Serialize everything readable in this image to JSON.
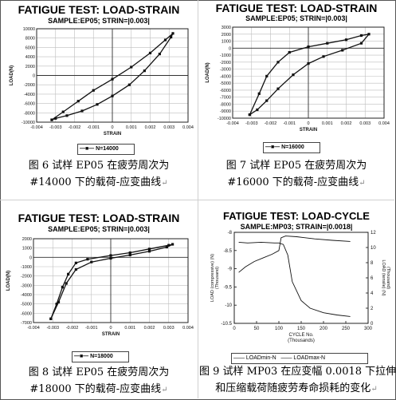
{
  "chart_data": [
    {
      "type": "line",
      "title": "FATIGUE TEST: LOAD-STRAIN",
      "subtitle": "SAMPLE:EP05; STRIN=|0.003|",
      "xlabel": "STRAIN",
      "ylabel": "LOAD(N)",
      "xlim": [
        -0.004,
        0.004
      ],
      "ylim": [
        -10000,
        10000
      ],
      "xticks": [
        "-0.004",
        "-0.003",
        "-0.002",
        "-0.001",
        "0",
        "0.001",
        "0.002",
        "0.003",
        "0.004"
      ],
      "yticks": [
        "10000",
        "8000",
        "6000",
        "4000",
        "2000",
        "0",
        "-2000",
        "-4000",
        "-6000",
        "-8000",
        "-10000"
      ],
      "grid": true,
      "legend": "bottom-center",
      "series": [
        {
          "name": "N=14000",
          "x": [
            -0.0032,
            -0.0026,
            -0.0018,
            -0.001,
            0.0,
            0.001,
            0.002,
            0.0028,
            0.0032,
            0.0031,
            0.0025,
            0.0017,
            0.0009,
            0.0,
            -0.0008,
            -0.0016,
            -0.0024,
            -0.003,
            -0.0032
          ],
          "y": [
            -9500,
            -7800,
            -5500,
            -3200,
            -800,
            1800,
            4800,
            7600,
            9000,
            8200,
            4600,
            1000,
            -2000,
            -4400,
            -6200,
            -7600,
            -8600,
            -9200,
            -9500
          ]
        }
      ]
    },
    {
      "type": "line",
      "title": "FATIGUE TEST: LOAD-STRAIN",
      "subtitle": "SAMPLE:EP05; STRIN=|0.003|",
      "xlabel": "STRAIN",
      "ylabel": "LOAD(N)",
      "xlim": [
        -0.004,
        0.004
      ],
      "ylim": [
        -10000,
        3000
      ],
      "xticks": [
        "-0.004",
        "-0.003",
        "-0.002",
        "-0.001",
        "0",
        "0.001",
        "0.002",
        "0.003",
        "0.004"
      ],
      "yticks": [
        "3000",
        "2000",
        "1000",
        "0",
        "-1000",
        "-2000",
        "-3000",
        "-4000",
        "-5000",
        "-6000",
        "-7000",
        "-8000",
        "-9000",
        "-10000"
      ],
      "grid": true,
      "legend": "bottom-center",
      "series": [
        {
          "name": "N=16000",
          "x": [
            -0.0031,
            -0.0026,
            -0.0022,
            -0.0016,
            -0.001,
            0.0,
            0.001,
            0.002,
            0.0028,
            0.0032,
            0.0028,
            0.0018,
            0.0008,
            0.0,
            -0.0008,
            -0.0016,
            -0.0022,
            -0.0027,
            -0.0031
          ],
          "y": [
            -9500,
            -6500,
            -4000,
            -2000,
            -600,
            200,
            700,
            1200,
            1800,
            2000,
            700,
            -300,
            -1200,
            -2200,
            -3800,
            -5800,
            -7500,
            -8800,
            -9500
          ]
        }
      ]
    },
    {
      "type": "line",
      "title": "FATIGUE TEST: LOAD-STRAIN",
      "subtitle": "SAMPLE:EP05; STRIN=|0.003|",
      "xlabel": "STRAIN",
      "ylabel": "LOAD(N)",
      "xlim": [
        -0.004,
        0.004
      ],
      "ylim": [
        -7000,
        2000
      ],
      "xticks": [
        "-0.004",
        "-0.003",
        "-0.002",
        "-0.001",
        "0",
        "0.001",
        "0.002",
        "0.003",
        "0.004"
      ],
      "yticks": [
        "2000",
        "1000",
        "0",
        "-1000",
        "-2000",
        "-3000",
        "-4000",
        "-5000",
        "-6000",
        "-7000"
      ],
      "grid": true,
      "legend": "bottom-center",
      "series": [
        {
          "name": "N=18000",
          "x": [
            -0.0031,
            -0.0028,
            -0.0025,
            -0.0022,
            -0.0018,
            -0.0012,
            0.0,
            0.001,
            0.002,
            0.003,
            0.0032,
            0.0029,
            0.002,
            0.001,
            0.0,
            -0.001,
            -0.0018,
            -0.0023,
            -0.0027,
            -0.0031
          ],
          "y": [
            -6600,
            -5000,
            -3200,
            -1800,
            -600,
            -200,
            200,
            500,
            900,
            1300,
            1400,
            1100,
            650,
            250,
            -100,
            -500,
            -1300,
            -2800,
            -4800,
            -6600
          ]
        }
      ]
    },
    {
      "type": "line",
      "title": "FATIGUE TEST: LOAD-CYCLE",
      "subtitle": "SAMPLE:MP03; STRAIN=|0.0018|",
      "xlabel": "CYCLE No.",
      "xlabel2": "(Thousands)",
      "ylabel_left": "LOAD (compressive) (N)",
      "ylabel_left_unit": "(Thousand)",
      "ylabel_right": "LOAD (tensile) (N)",
      "ylabel_right_unit": "(Thousand)",
      "xlim": [
        0,
        300
      ],
      "ylim_left": [
        -10.5,
        -8
      ],
      "ylim_right": [
        0,
        12
      ],
      "xticks": [
        "0",
        "50",
        "100",
        "150",
        "200",
        "250",
        "300"
      ],
      "yticks_left": [
        "-8",
        "-8.5",
        "-9",
        "-9.5",
        "-10",
        "-10.5"
      ],
      "yticks_right": [
        "12",
        "10",
        "8",
        "6",
        "4",
        "2",
        "0"
      ],
      "grid": false,
      "legend": "bottom-center",
      "series": [
        {
          "name": "LOADmin-N",
          "axis": "left",
          "x": [
            10,
            25,
            45,
            65,
            85,
            100,
            105,
            115,
            140,
            180,
            220,
            260
          ],
          "y": [
            -9.1,
            -8.95,
            -8.8,
            -8.7,
            -8.6,
            -8.5,
            -8.15,
            -8.1,
            -8.12,
            -8.18,
            -8.22,
            -8.25
          ]
        },
        {
          "name": "LOADmax-N",
          "axis": "right",
          "x": [
            10,
            30,
            60,
            90,
            100,
            110,
            120,
            130,
            150,
            170,
            200,
            230,
            260
          ],
          "y": [
            10.7,
            10.6,
            10.7,
            10.6,
            10.6,
            10.4,
            9.0,
            5.5,
            3.0,
            2.0,
            1.4,
            1.1,
            0.9
          ]
        }
      ]
    }
  ],
  "captions": [
    {
      "line1": "图 6 试样 EP05 在疲劳周次为",
      "line2": "#14000 下的载荷-应变曲线"
    },
    {
      "line1": "图 7 试样 EP05 在疲劳周次为",
      "line2": "#16000 下的载荷-应变曲线"
    },
    {
      "line1": "图 8 试样 EP05 在疲劳周次为",
      "line2": "#18000 下的载荷-应变曲线"
    },
    {
      "line1": "图 9 试样 MP03 在应变幅 0.0018 下拉伸",
      "line2": "和压缩载荷随疲劳寿命损耗的变化"
    }
  ],
  "colors": {
    "ink": "#111111",
    "grid": "#bdbdbd",
    "frame": "#555555"
  }
}
